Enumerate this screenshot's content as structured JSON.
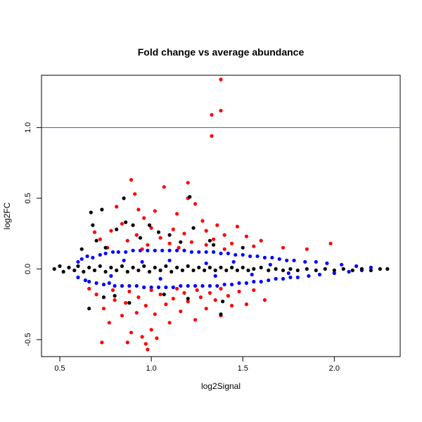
{
  "chart_data": {
    "type": "scatter",
    "title": "Fold change vs average abundance",
    "xlabel": "log2Signal",
    "ylabel": "log2FC",
    "xlim": [
      0.4,
      2.36
    ],
    "ylim": [
      -0.62,
      1.37
    ],
    "xticks": [
      0.5,
      1.0,
      1.5,
      2.0
    ],
    "xtick_labels": [
      "0.5",
      "1.0",
      "1.5",
      "2.0"
    ],
    "yticks": [
      -0.5,
      0.0,
      0.5,
      1.0
    ],
    "ytick_labels": [
      "-0.5",
      "0.0",
      "0.5",
      "1.0"
    ],
    "grid": false,
    "reference_line": {
      "y": 1.0,
      "color": "#4a4ad8"
    },
    "series": [
      {
        "color": "#0000ff",
        "points": [
          [
            0.6,
            0.05
          ],
          [
            0.6,
            -0.06
          ],
          [
            0.62,
            0.07
          ],
          [
            0.64,
            -0.08
          ],
          [
            0.65,
            0.09
          ],
          [
            0.66,
            -0.09
          ],
          [
            0.68,
            0.08
          ],
          [
            0.7,
            -0.1
          ],
          [
            0.72,
            0.1
          ],
          [
            0.74,
            -0.11
          ],
          [
            0.75,
            0.11
          ],
          [
            0.77,
            -0.1
          ],
          [
            0.79,
            0.12
          ],
          [
            0.8,
            -0.12
          ],
          [
            0.82,
            0.12
          ],
          [
            0.84,
            -0.12
          ],
          [
            0.86,
            0.12
          ],
          [
            0.88,
            -0.12
          ],
          [
            0.9,
            0.13
          ],
          [
            0.92,
            -0.12
          ],
          [
            0.94,
            0.13
          ],
          [
            0.96,
            -0.13
          ],
          [
            0.98,
            0.13
          ],
          [
            1.0,
            -0.13
          ],
          [
            1.02,
            0.13
          ],
          [
            1.04,
            -0.13
          ],
          [
            1.06,
            0.13
          ],
          [
            1.08,
            -0.13
          ],
          [
            1.1,
            0.13
          ],
          [
            1.12,
            -0.13
          ],
          [
            1.14,
            0.13
          ],
          [
            1.16,
            -0.12
          ],
          [
            1.18,
            0.13
          ],
          [
            1.2,
            -0.12
          ],
          [
            1.22,
            0.12
          ],
          [
            1.24,
            -0.12
          ],
          [
            1.26,
            0.12
          ],
          [
            1.28,
            -0.12
          ],
          [
            1.3,
            0.12
          ],
          [
            1.32,
            -0.12
          ],
          [
            1.34,
            0.12
          ],
          [
            1.36,
            -0.12
          ],
          [
            1.38,
            0.11
          ],
          [
            1.4,
            -0.11
          ],
          [
            1.42,
            0.11
          ],
          [
            1.44,
            -0.11
          ],
          [
            1.46,
            0.1
          ],
          [
            1.48,
            -0.1
          ],
          [
            1.5,
            0.1
          ],
          [
            1.52,
            -0.1
          ],
          [
            1.54,
            0.09
          ],
          [
            1.56,
            -0.09
          ],
          [
            1.58,
            0.09
          ],
          [
            1.6,
            -0.09
          ],
          [
            1.62,
            0.08
          ],
          [
            1.64,
            -0.08
          ],
          [
            1.66,
            0.08
          ],
          [
            1.68,
            -0.07
          ],
          [
            1.7,
            0.07
          ],
          [
            1.72,
            -0.07
          ],
          [
            1.74,
            0.06
          ],
          [
            1.76,
            -0.06
          ],
          [
            1.78,
            0.06
          ],
          [
            1.8,
            -0.06
          ],
          [
            1.84,
            0.05
          ],
          [
            1.86,
            -0.05
          ],
          [
            1.9,
            0.05
          ],
          [
            1.92,
            -0.04
          ],
          [
            1.96,
            0.04
          ],
          [
            2.0,
            -0.03
          ],
          [
            2.04,
            0.03
          ],
          [
            2.08,
            -0.02
          ],
          [
            2.12,
            0.02
          ],
          [
            2.15,
            -0.01
          ],
          [
            2.2,
            0.01
          ],
          [
            1.3,
            0.04
          ],
          [
            1.35,
            -0.05
          ],
          [
            1.1,
            0.06
          ],
          [
            1.05,
            -0.07
          ],
          [
            0.95,
            0.05
          ],
          [
            1.45,
            0.05
          ],
          [
            1.55,
            -0.04
          ],
          [
            1.65,
            0.03
          ],
          [
            1.75,
            -0.03
          ],
          [
            0.85,
            0.06
          ],
          [
            0.78,
            -0.05
          ]
        ]
      },
      {
        "color": "#ff0000",
        "points": [
          [
            1.38,
            1.34
          ],
          [
            1.38,
            1.12
          ],
          [
            1.33,
            1.09
          ],
          [
            1.33,
            0.94
          ],
          [
            0.89,
            0.63
          ],
          [
            1.2,
            0.61
          ],
          [
            1.07,
            0.58
          ],
          [
            0.91,
            0.53
          ],
          [
            1.2,
            0.5
          ],
          [
            1.24,
            0.46
          ],
          [
            0.81,
            0.44
          ],
          [
            0.93,
            0.42
          ],
          [
            1.02,
            0.41
          ],
          [
            1.14,
            0.39
          ],
          [
            0.96,
            0.36
          ],
          [
            1.28,
            0.34
          ],
          [
            0.84,
            0.32
          ],
          [
            1.36,
            0.31
          ],
          [
            1.47,
            0.3
          ],
          [
            1.0,
            0.29
          ],
          [
            1.12,
            0.28
          ],
          [
            0.78,
            0.27
          ],
          [
            1.3,
            0.27
          ],
          [
            0.69,
            0.26
          ],
          [
            1.18,
            0.25
          ],
          [
            1.4,
            0.24
          ],
          [
            0.92,
            0.24
          ],
          [
            1.52,
            0.23
          ],
          [
            1.05,
            0.22
          ],
          [
            0.72,
            0.21
          ],
          [
            1.34,
            0.21
          ],
          [
            1.6,
            0.2
          ],
          [
            0.87,
            0.2
          ],
          [
            1.22,
            0.19
          ],
          [
            1.44,
            0.18
          ],
          [
            1.98,
            0.18
          ],
          [
            1.1,
            0.18
          ],
          [
            0.98,
            0.17
          ],
          [
            1.3,
            0.17
          ],
          [
            1.56,
            0.16
          ],
          [
            1.72,
            0.15
          ],
          [
            0.76,
            0.15
          ],
          [
            1.15,
            0.15
          ],
          [
            1.85,
            0.14
          ],
          [
            0.95,
            0.14
          ],
          [
            1.4,
            0.14
          ],
          [
            0.73,
            -0.52
          ],
          [
            0.87,
            -0.52
          ],
          [
            0.98,
            -0.57
          ],
          [
            0.97,
            -0.53
          ],
          [
            1.03,
            -0.49
          ],
          [
            0.95,
            -0.48
          ],
          [
            0.89,
            -0.45
          ],
          [
            1.0,
            -0.43
          ],
          [
            0.77,
            -0.38
          ],
          [
            1.1,
            -0.38
          ],
          [
            1.24,
            -0.36
          ],
          [
            1.38,
            -0.33
          ],
          [
            0.84,
            -0.33
          ],
          [
            1.02,
            -0.32
          ],
          [
            0.92,
            -0.31
          ],
          [
            1.16,
            -0.3
          ],
          [
            0.74,
            -0.28
          ],
          [
            1.3,
            -0.28
          ],
          [
            1.44,
            -0.26
          ],
          [
            0.97,
            -0.26
          ],
          [
            1.08,
            -0.25
          ],
          [
            1.52,
            -0.25
          ],
          [
            0.86,
            -0.24
          ],
          [
            1.2,
            -0.23
          ],
          [
            1.35,
            -0.22
          ],
          [
            0.8,
            -0.22
          ],
          [
            1.62,
            -0.22
          ],
          [
            1.12,
            -0.21
          ],
          [
            0.93,
            -0.2
          ],
          [
            1.27,
            -0.2
          ],
          [
            1.42,
            -0.19
          ],
          [
            1.05,
            -0.18
          ],
          [
            0.7,
            -0.18
          ],
          [
            1.18,
            -0.17
          ],
          [
            1.32,
            -0.17
          ],
          [
            0.88,
            -0.16
          ],
          [
            1.48,
            -0.16
          ],
          [
            1.0,
            -0.15
          ],
          [
            0.79,
            -0.15
          ],
          [
            1.25,
            -0.15
          ],
          [
            1.56,
            -0.15
          ],
          [
            1.14,
            -0.14
          ],
          [
            0.66,
            -0.14
          ],
          [
            1.38,
            -0.14
          ]
        ]
      },
      {
        "color": "#000000",
        "points": [
          [
            0.85,
            0.5
          ],
          [
            0.67,
            0.4
          ],
          [
            0.73,
            0.42
          ],
          [
            0.86,
            0.33
          ],
          [
            0.9,
            0.31
          ],
          [
            0.99,
            0.31
          ],
          [
            1.04,
            0.26
          ],
          [
            0.68,
            0.31
          ],
          [
            0.81,
            0.28
          ],
          [
            1.1,
            0.24
          ],
          [
            1.21,
            0.51
          ],
          [
            1.23,
            0.29
          ],
          [
            1.32,
            0.2
          ],
          [
            0.7,
            0.2
          ],
          [
            1.34,
            0.17
          ],
          [
            0.94,
            0.22
          ],
          [
            0.62,
            0.14
          ],
          [
            0.75,
            0.15
          ],
          [
            1.16,
            0.19
          ],
          [
            1.5,
            0.15
          ],
          [
            0.47,
            0.0
          ],
          [
            0.5,
            0.02
          ],
          [
            0.52,
            -0.02
          ],
          [
            0.55,
            0.01
          ],
          [
            0.58,
            -0.01
          ],
          [
            0.6,
            0.02
          ],
          [
            0.63,
            -0.02
          ],
          [
            0.66,
            0.01
          ],
          [
            0.69,
            -0.01
          ],
          [
            0.72,
            0.02
          ],
          [
            0.75,
            -0.02
          ],
          [
            0.78,
            0.01
          ],
          [
            0.81,
            -0.01
          ],
          [
            0.84,
            0.02
          ],
          [
            0.87,
            -0.02
          ],
          [
            0.9,
            0.01
          ],
          [
            0.93,
            -0.01
          ],
          [
            0.96,
            0.02
          ],
          [
            0.99,
            -0.02
          ],
          [
            1.02,
            0.01
          ],
          [
            1.05,
            -0.01
          ],
          [
            1.08,
            0.02
          ],
          [
            1.11,
            -0.02
          ],
          [
            1.14,
            0.01
          ],
          [
            1.17,
            -0.01
          ],
          [
            1.2,
            0.02
          ],
          [
            1.23,
            -0.01
          ],
          [
            1.26,
            0.01
          ],
          [
            1.29,
            -0.01
          ],
          [
            1.32,
            0.01
          ],
          [
            1.35,
            -0.01
          ],
          [
            1.38,
            0.01
          ],
          [
            1.41,
            -0.01
          ],
          [
            1.44,
            0.01
          ],
          [
            1.47,
            -0.01
          ],
          [
            1.5,
            0.01
          ],
          [
            1.53,
            -0.01
          ],
          [
            1.56,
            0.0
          ],
          [
            1.6,
            0.01
          ],
          [
            1.64,
            -0.01
          ],
          [
            1.68,
            0.0
          ],
          [
            1.72,
            -0.01
          ],
          [
            1.76,
            0.0
          ],
          [
            1.8,
            -0.01
          ],
          [
            1.85,
            0.0
          ],
          [
            1.9,
            -0.01
          ],
          [
            1.95,
            0.0
          ],
          [
            2.0,
            -0.01
          ],
          [
            2.05,
            0.0
          ],
          [
            2.1,
            -0.01
          ],
          [
            2.15,
            0.0
          ],
          [
            2.2,
            -0.01
          ],
          [
            2.25,
            0.0
          ],
          [
            2.29,
            0.0
          ],
          [
            0.74,
            -0.2
          ],
          [
            0.8,
            -0.19
          ],
          [
            0.66,
            -0.28
          ],
          [
            1.2,
            -0.21
          ],
          [
            1.39,
            -0.23
          ],
          [
            1.38,
            -0.32
          ],
          [
            0.88,
            -0.24
          ],
          [
            1.07,
            -0.18
          ]
        ]
      }
    ]
  }
}
